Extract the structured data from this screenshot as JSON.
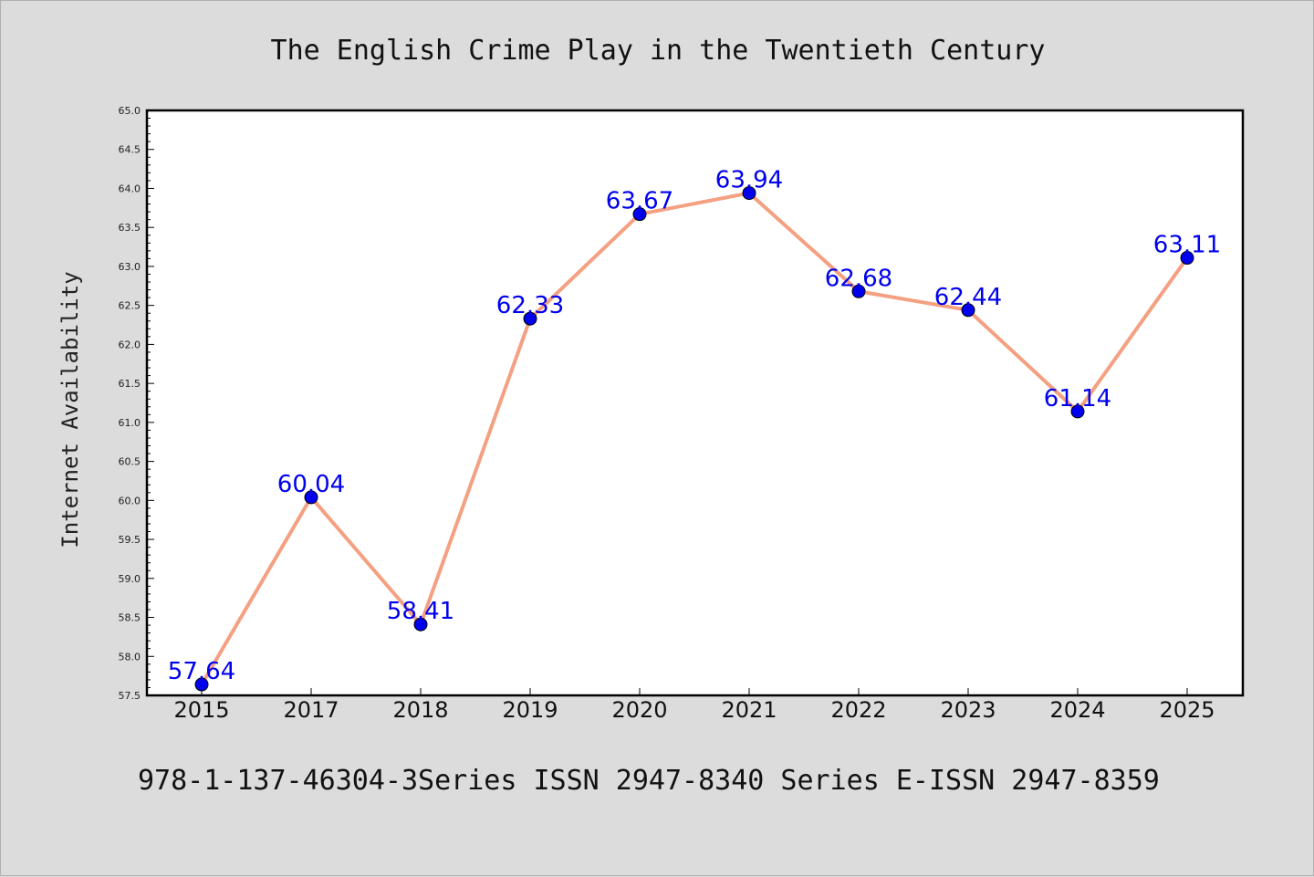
{
  "chart_data": {
    "type": "line",
    "title": "The English Crime Play in the Twentieth Century",
    "ylabel": "Internet Availability",
    "xlabel": "",
    "footer": "978-1-137-46304-3Series ISSN 2947-8340 Series E-ISSN 2947-8359",
    "categories": [
      "2015",
      "2017",
      "2018",
      "2019",
      "2020",
      "2021",
      "2022",
      "2023",
      "2024",
      "2025"
    ],
    "values": [
      57.64,
      60.04,
      58.41,
      62.33,
      63.67,
      63.94,
      62.68,
      62.44,
      61.14,
      63.11
    ],
    "data_labels": [
      "57.64",
      "60.04",
      "58.41",
      "62.33",
      "63.67",
      "63.94",
      "62.68",
      "62.44",
      "61.14",
      "63.11"
    ],
    "ylim": [
      57.5,
      65.0
    ],
    "yticks": [
      "57.5",
      "58.0",
      "58.5",
      "59.0",
      "59.5",
      "60.0",
      "60.5",
      "61.0",
      "61.5",
      "62.0",
      "62.5",
      "63.0",
      "63.5",
      "64.0",
      "64.5",
      "65.0"
    ],
    "grid": false,
    "line_color": "#f4a081",
    "marker_color": "#0000ee",
    "label_color": "#0000ee"
  }
}
